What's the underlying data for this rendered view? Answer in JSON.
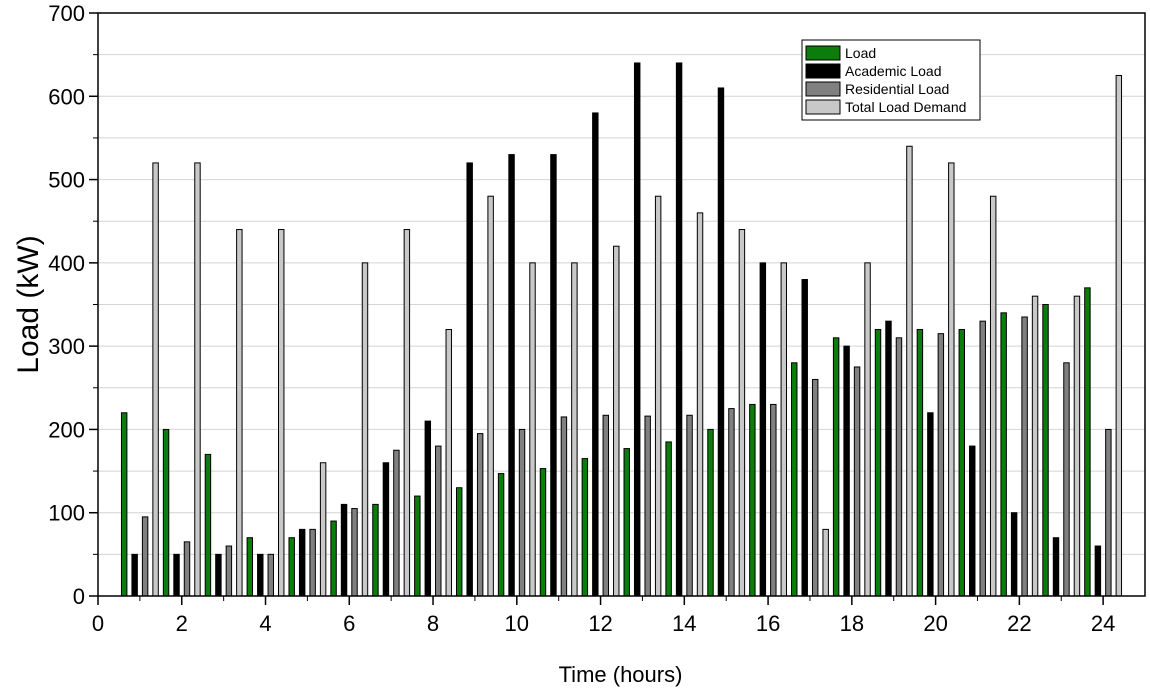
{
  "chart_data": {
    "type": "bar",
    "title": "",
    "xlabel": "Time (hours)",
    "ylabel": "Load (kW)",
    "xlim": [
      0,
      25
    ],
    "ylim": [
      0,
      700
    ],
    "x_ticks": [
      0,
      2,
      4,
      6,
      8,
      10,
      12,
      14,
      16,
      18,
      20,
      22,
      24
    ],
    "y_ticks": [
      0,
      100,
      200,
      300,
      400,
      500,
      600,
      700
    ],
    "grid": "horizontal minor lines",
    "legend_position": "top-right",
    "x": [
      1,
      2,
      3,
      4,
      5,
      6,
      7,
      8,
      9,
      10,
      11,
      12,
      13,
      14,
      15,
      16,
      17,
      18,
      19,
      20,
      21,
      22,
      23,
      24
    ],
    "series": [
      {
        "name": "Load",
        "color": "#0a7d0a",
        "values": [
          220,
          200,
          170,
          70,
          70,
          90,
          110,
          120,
          130,
          147,
          153,
          165,
          177,
          185,
          200,
          230,
          280,
          310,
          320,
          320,
          320,
          340,
          350,
          370
        ]
      },
      {
        "name": "Academic Load",
        "color": "#000000",
        "values": [
          50,
          50,
          50,
          50,
          80,
          110,
          160,
          210,
          520,
          530,
          530,
          580,
          640,
          640,
          610,
          400,
          380,
          300,
          330,
          220,
          180,
          100,
          70,
          60
        ]
      },
      {
        "name": "Residential Load",
        "color": "#808080",
        "values": [
          95,
          65,
          60,
          50,
          80,
          105,
          175,
          180,
          195,
          200,
          215,
          217,
          216,
          217,
          225,
          230,
          260,
          275,
          310,
          315,
          330,
          335,
          280,
          200
        ]
      },
      {
        "name": "Total Load Demand",
        "color": "#c8c8c8",
        "values": [
          520,
          520,
          440,
          440,
          160,
          400,
          440,
          320,
          480,
          400,
          400,
          420,
          480,
          460,
          440,
          400,
          80,
          400,
          540,
          520,
          480,
          360,
          360,
          625
        ]
      }
    ]
  }
}
